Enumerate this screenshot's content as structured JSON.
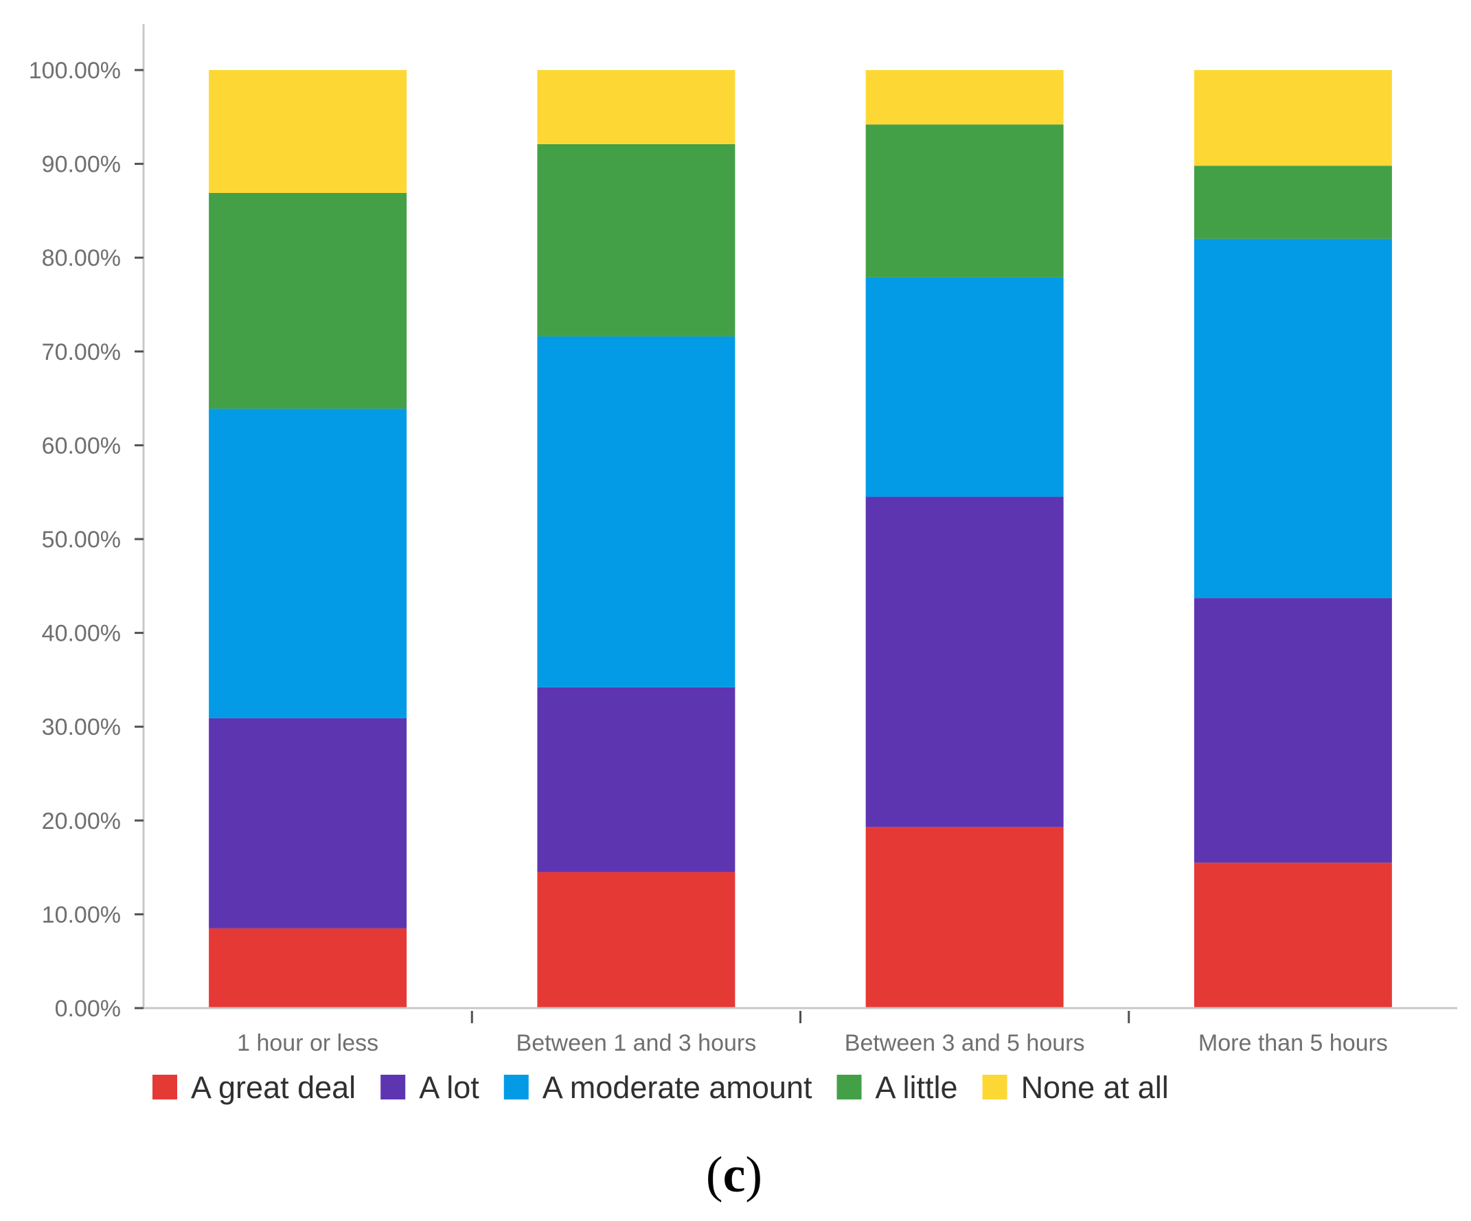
{
  "chart_data": {
    "type": "bar",
    "stacked": true,
    "categories": [
      "1 hour or less",
      "Between 1 and 3 hours",
      "Between 3 and 5 hours",
      "More than 5 hours"
    ],
    "series": [
      {
        "name": "A great deal",
        "color": "#e53935",
        "values": [
          8.5,
          14.5,
          19.3,
          15.5
        ]
      },
      {
        "name": "A lot",
        "color": "#5e35b1",
        "values": [
          22.4,
          19.7,
          35.2,
          28.2
        ]
      },
      {
        "name": "A moderate amount",
        "color": "#039be5",
        "values": [
          33.0,
          37.4,
          23.4,
          38.3
        ]
      },
      {
        "name": "A little",
        "color": "#43a047",
        "values": [
          23.0,
          20.5,
          16.3,
          7.8
        ]
      },
      {
        "name": "None at all",
        "color": "#fdd835",
        "values": [
          13.1,
          7.9,
          5.8,
          10.2
        ]
      }
    ],
    "y_ticks": [
      "0.00%",
      "10.00%",
      "20.00%",
      "30.00%",
      "40.00%",
      "50.00%",
      "60.00%",
      "70.00%",
      "80.00%",
      "90.00%",
      "100.00%"
    ],
    "ylim": [
      0,
      100
    ],
    "xlabel": "",
    "ylabel": "",
    "title": "",
    "legend_position": "bottom-left",
    "grid": false
  },
  "caption": {
    "open": "(",
    "letter": "c",
    "close": ")"
  },
  "colors": {
    "axis": "#c8c8c8",
    "tick_text": "#6f6f6f"
  }
}
